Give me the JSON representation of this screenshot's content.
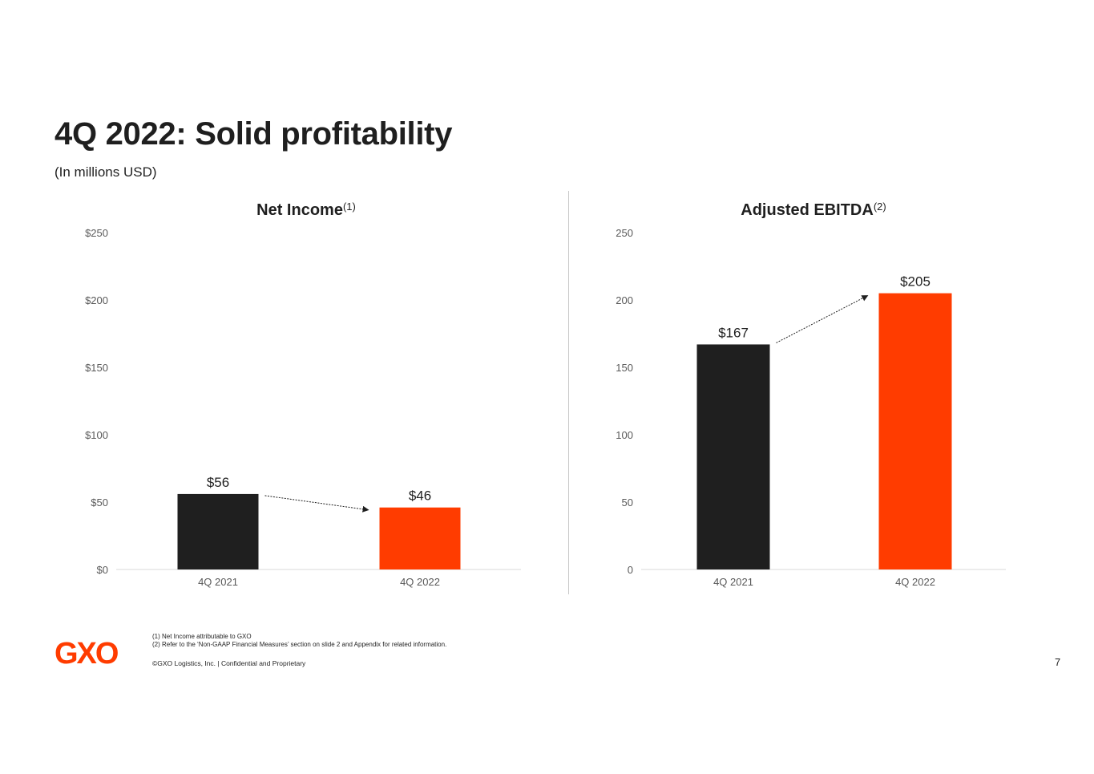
{
  "title": "4Q 2022: Solid profitability",
  "subtitle": "(In millions USD)",
  "chart_data": [
    {
      "type": "bar",
      "title": "Net Income",
      "title_superscript": "(1)",
      "categories": [
        "4Q 2021",
        "4Q 2022"
      ],
      "values": [
        56,
        46
      ],
      "value_labels": [
        "$56",
        "$46"
      ],
      "bar_colors": [
        "#1f1f1f",
        "#ff3c00"
      ],
      "y_ticks": [
        "$0",
        "$50",
        "$100",
        "$150",
        "$200",
        "$250"
      ],
      "ylim": [
        0,
        250
      ],
      "xlabel": "",
      "ylabel": "",
      "grid": false,
      "trend_arrow": "down"
    },
    {
      "type": "bar",
      "title": "Adjusted EBITDA",
      "title_superscript": "(2)",
      "categories": [
        "4Q 2021",
        "4Q 2022"
      ],
      "values": [
        167,
        205
      ],
      "value_labels": [
        "$167",
        "$205"
      ],
      "bar_colors": [
        "#1f1f1f",
        "#ff3c00"
      ],
      "y_ticks": [
        "0",
        "50",
        "100",
        "150",
        "200",
        "250"
      ],
      "ylim": [
        0,
        250
      ],
      "xlabel": "",
      "ylabel": "",
      "grid": false,
      "trend_arrow": "up"
    }
  ],
  "footnotes": [
    "(1) Net Income attributable to GXO",
    "(2) Refer to the ‘Non-GAAP Financial Measures’ section on slide 2 and Appendix for related information."
  ],
  "copyright": "©GXO Logistics, Inc. | Confidential and Proprietary",
  "page_number": "7",
  "logo_text": "GXO",
  "colors": {
    "brand": "#ff3c00",
    "dark": "#1f1f1f",
    "axis": "#d9d9d9",
    "tick": "#595959"
  }
}
